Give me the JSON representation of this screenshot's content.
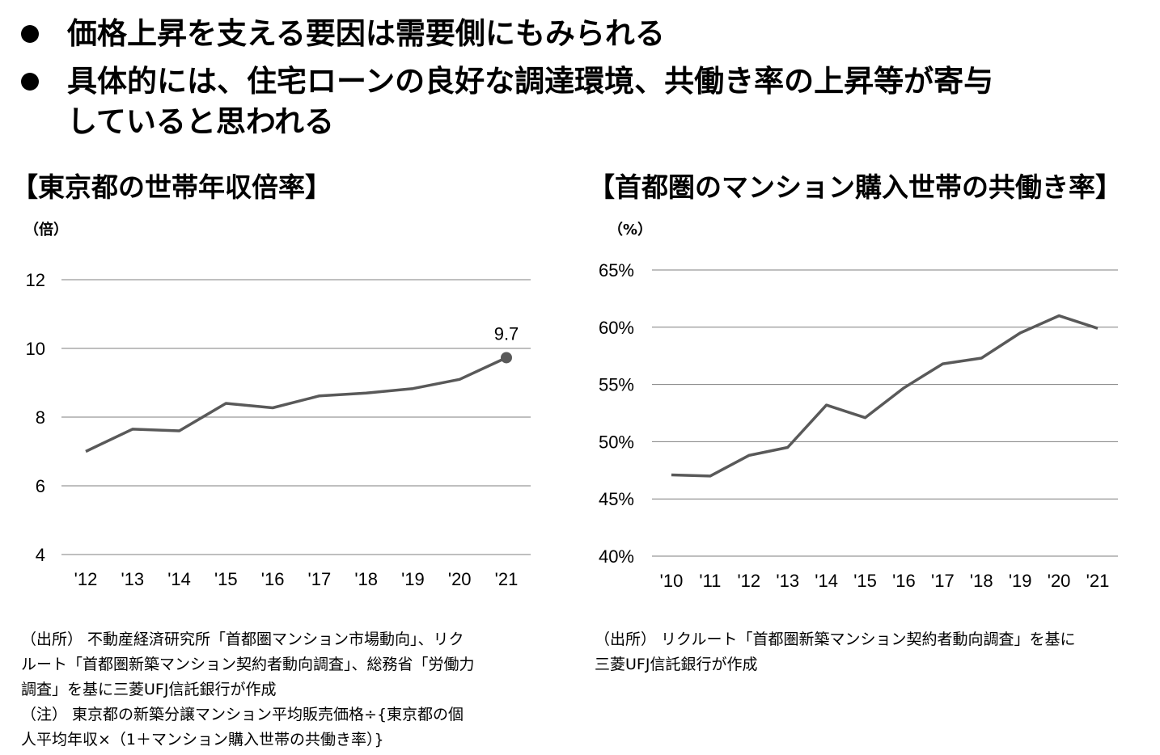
{
  "bullets": [
    {
      "lines": [
        "価格上昇を支える要因は需要側にもみられる"
      ]
    },
    {
      "lines": [
        "具体的には、住宅ローンの良好な調達環境、共働き率の上昇等が寄与",
        "していると思われる"
      ]
    }
  ],
  "chart_data": [
    {
      "type": "line",
      "title": "【東京都の世帯年収倍率】",
      "unit": "（倍）",
      "categories": [
        "'12",
        "'13",
        "'14",
        "'15",
        "'16",
        "'17",
        "'18",
        "'19",
        "'20",
        "'21"
      ],
      "values": [
        7.0,
        7.65,
        7.6,
        8.4,
        8.27,
        8.62,
        8.7,
        8.83,
        9.1,
        9.73
      ],
      "ylim": [
        4,
        12
      ],
      "yticks": [
        "4",
        "6",
        "8",
        "10",
        "12"
      ],
      "annotation": {
        "label": "9.7",
        "index": 9
      },
      "line_color": "#595959"
    },
    {
      "type": "line",
      "title": "【首都圏のマンション購入世帯の共働き率】",
      "unit": "（%）",
      "categories": [
        "'10",
        "'11",
        "'12",
        "'13",
        "'14",
        "'15",
        "'16",
        "'17",
        "'18",
        "'19",
        "'20",
        "'21"
      ],
      "values": [
        47.1,
        47.0,
        48.8,
        49.5,
        53.2,
        52.1,
        54.7,
        56.8,
        57.3,
        59.5,
        61.0,
        59.9
      ],
      "ylim": [
        40,
        65
      ],
      "yticks": [
        "40%",
        "45%",
        "50%",
        "55%",
        "60%",
        "65%"
      ],
      "line_color": "#595959"
    }
  ],
  "notes_left": {
    "source": [
      "（出所） 不動産経済研究所「首都圏マンション市場動向」、リク",
      "ルート「首都圏新築マンション契約者動向調査」、総務省「労働力",
      "調査」を基に三菱UFJ信託銀行が作成"
    ],
    "note": [
      "（注） 東京都の新築分譲マンション平均販売価格÷{東京都の個",
      "人平均年収×（1＋マンション購入世帯の共働き率）}"
    ]
  },
  "notes_right": {
    "source": [
      "（出所） リクルート「首都圏新築マンション契約者動向調査」を基に",
      "三菱UFJ信託銀行が作成"
    ]
  },
  "colors": {
    "grid": "#7f7f7f",
    "line": "#595959"
  }
}
